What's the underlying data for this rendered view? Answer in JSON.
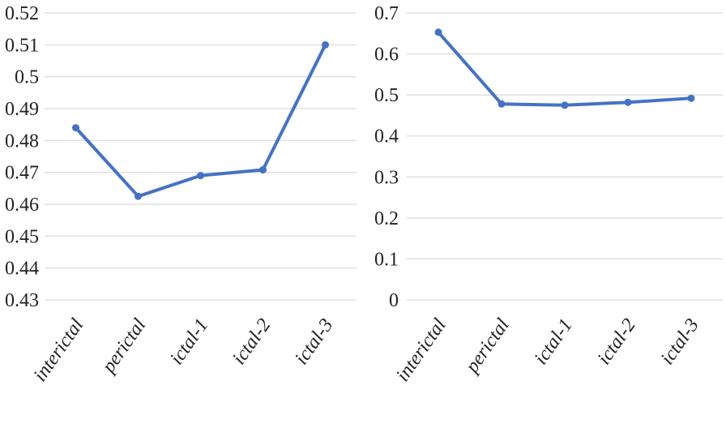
{
  "chart_data": [
    {
      "type": "line",
      "categories": [
        "interictal",
        "perictal",
        "ictal-1",
        "ictal-2",
        "ictal-3"
      ],
      "series": [
        {
          "values": [
            0.484,
            0.4625,
            0.469,
            0.4708,
            0.51
          ]
        }
      ],
      "yticks": [
        "0.43",
        "0.44",
        "0.45",
        "0.46",
        "0.47",
        "0.48",
        "0.49",
        "0.5",
        "0.51",
        "0.52"
      ],
      "ylim": [
        0.43,
        0.52
      ],
      "grid": true,
      "line_color": "#4472C4"
    },
    {
      "type": "line",
      "categories": [
        "interictal",
        "perictal",
        "ictal-1",
        "ictal-2",
        "ictal-3"
      ],
      "series": [
        {
          "values": [
            0.653,
            0.478,
            0.475,
            0.482,
            0.492
          ]
        }
      ],
      "yticks": [
        "0",
        "0.1",
        "0.2",
        "0.3",
        "0.4",
        "0.5",
        "0.6",
        "0.7"
      ],
      "ylim": [
        0,
        0.7
      ],
      "grid": true,
      "line_color": "#4472C4"
    }
  ]
}
